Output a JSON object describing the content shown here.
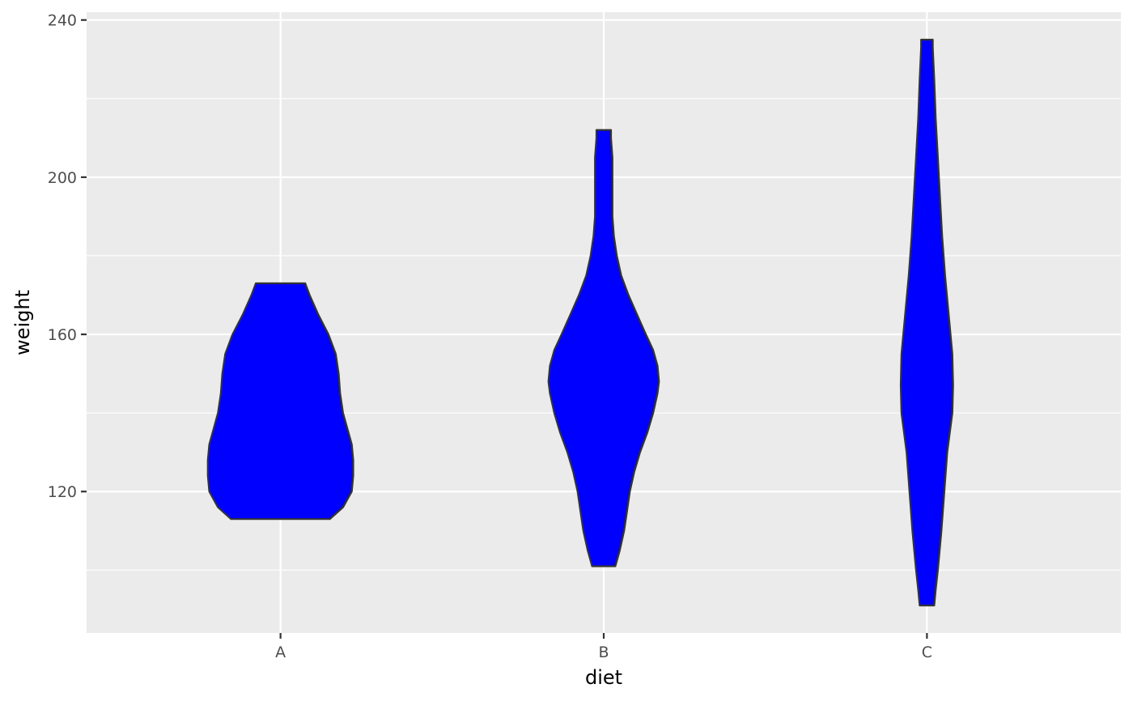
{
  "chart_data": {
    "type": "violin",
    "xlabel": "diet",
    "ylabel": "weight",
    "categories": [
      "A",
      "B",
      "C"
    ],
    "ylim": [
      84,
      242
    ],
    "y_ticks": [
      120,
      160,
      200,
      240
    ],
    "y_minor_ticks": [
      100,
      140,
      180,
      220
    ],
    "fill_color": "#0000ff",
    "outline_color": "#333333",
    "panel_background": "#ebebeb",
    "grid": true,
    "legend": "none",
    "violins": [
      {
        "category": "A",
        "y_min": 113,
        "y_max": 173,
        "width_profile": [
          [
            113,
            0.34
          ],
          [
            116,
            0.43
          ],
          [
            120,
            0.49
          ],
          [
            124,
            0.5
          ],
          [
            128,
            0.5
          ],
          [
            132,
            0.49
          ],
          [
            136,
            0.46
          ],
          [
            140,
            0.43
          ],
          [
            145,
            0.41
          ],
          [
            150,
            0.4
          ],
          [
            155,
            0.38
          ],
          [
            160,
            0.33
          ],
          [
            165,
            0.26
          ],
          [
            170,
            0.2
          ],
          [
            173,
            0.17
          ]
        ]
      },
      {
        "category": "B",
        "y_min": 101,
        "y_max": 212,
        "width_profile": [
          [
            101,
            0.08
          ],
          [
            105,
            0.11
          ],
          [
            110,
            0.14
          ],
          [
            115,
            0.16
          ],
          [
            120,
            0.18
          ],
          [
            125,
            0.21
          ],
          [
            130,
            0.25
          ],
          [
            135,
            0.3
          ],
          [
            140,
            0.34
          ],
          [
            145,
            0.37
          ],
          [
            148,
            0.38
          ],
          [
            152,
            0.37
          ],
          [
            156,
            0.34
          ],
          [
            160,
            0.29
          ],
          [
            165,
            0.23
          ],
          [
            170,
            0.17
          ],
          [
            175,
            0.12
          ],
          [
            180,
            0.09
          ],
          [
            185,
            0.07
          ],
          [
            190,
            0.06
          ],
          [
            195,
            0.06
          ],
          [
            200,
            0.06
          ],
          [
            205,
            0.06
          ],
          [
            210,
            0.05
          ],
          [
            212,
            0.05
          ]
        ]
      },
      {
        "category": "C",
        "y_min": 91,
        "y_max": 235,
        "width_profile": [
          [
            91,
            0.05
          ],
          [
            95,
            0.06
          ],
          [
            100,
            0.075
          ],
          [
            110,
            0.1
          ],
          [
            120,
            0.12
          ],
          [
            130,
            0.14
          ],
          [
            140,
            0.175
          ],
          [
            147,
            0.18
          ],
          [
            155,
            0.175
          ],
          [
            165,
            0.15
          ],
          [
            175,
            0.125
          ],
          [
            185,
            0.105
          ],
          [
            195,
            0.09
          ],
          [
            205,
            0.075
          ],
          [
            215,
            0.06
          ],
          [
            225,
            0.05
          ],
          [
            233,
            0.04
          ],
          [
            235,
            0.04
          ]
        ]
      }
    ]
  }
}
